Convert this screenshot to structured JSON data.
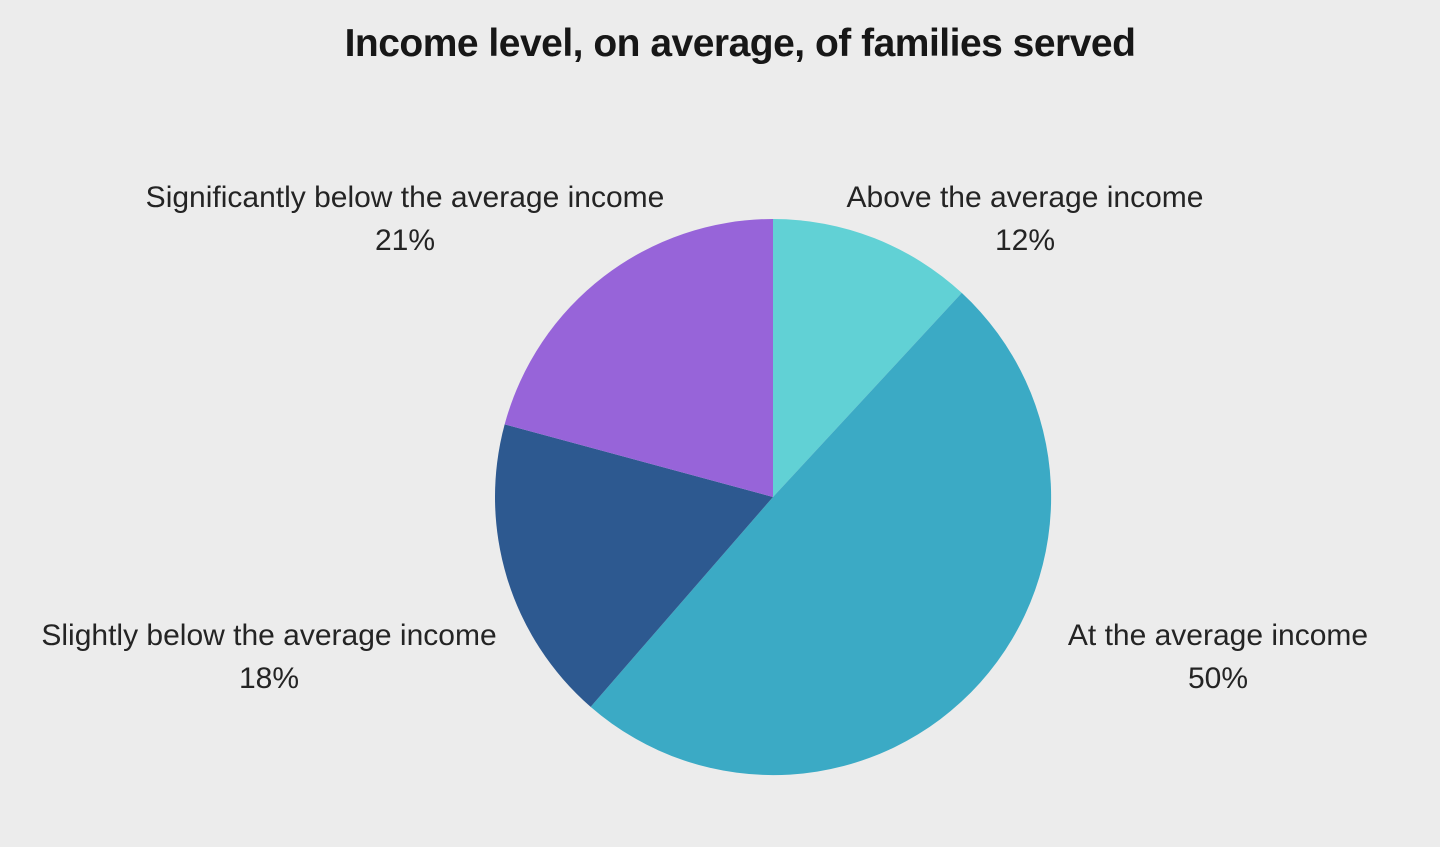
{
  "colors": {
    "background": "#ECECEC",
    "title_text": "#171717",
    "label_text": "#242424"
  },
  "chart_data": {
    "type": "pie",
    "title": "Income level, on average, of families served",
    "legend_position": "labels-around-pie",
    "start_angle_deg": 0,
    "direction": "clockwise",
    "slices": [
      {
        "label": "Above the average income",
        "value": 12,
        "display": "12%",
        "color": "#61D1D5"
      },
      {
        "label": "At the average income",
        "value": 50,
        "display": "50%",
        "color": "#3BAAC5"
      },
      {
        "label": "Slightly below the average income",
        "value": 18,
        "display": "18%",
        "color": "#2D5990"
      },
      {
        "label": "Significantly below the average income",
        "value": 21,
        "display": "21%",
        "color": "#9764D9"
      }
    ]
  }
}
